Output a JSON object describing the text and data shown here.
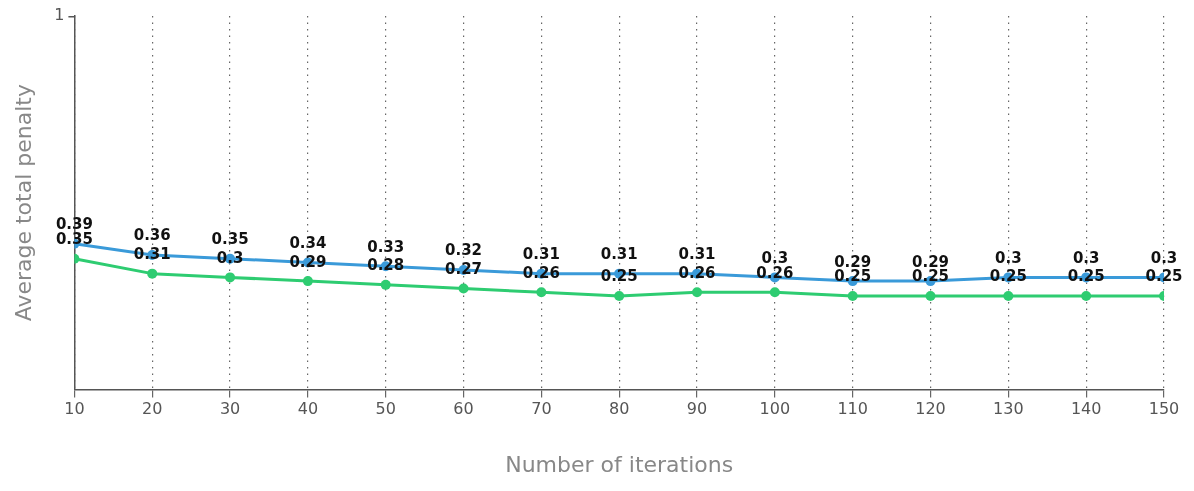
{
  "chart_data": {
    "type": "line",
    "xlabel": "Number of iterations",
    "ylabel": "Average total penalty",
    "x": [
      10,
      20,
      30,
      40,
      50,
      60,
      70,
      80,
      90,
      100,
      110,
      120,
      130,
      140,
      150
    ],
    "series": [
      {
        "color": "#3a9ad9",
        "values": [
          0.39,
          0.36,
          0.35,
          0.34,
          0.33,
          0.32,
          0.31,
          0.31,
          0.31,
          0.3,
          0.29,
          0.29,
          0.3,
          0.3,
          0.3
        ]
      },
      {
        "color": "#2ecc71",
        "values": [
          0.35,
          0.31,
          0.3,
          0.29,
          0.28,
          0.27,
          0.26,
          0.25,
          0.26,
          0.26,
          0.25,
          0.25,
          0.25,
          0.25,
          0.25
        ]
      }
    ],
    "xlim": [
      10,
      150
    ],
    "xticks": [
      10,
      20,
      30,
      40,
      50,
      60,
      70,
      80,
      90,
      100,
      110,
      120,
      130,
      140,
      150
    ],
    "ylim": [
      0,
      1
    ],
    "annotations": [
      "1"
    ],
    "grid": "x",
    "marker": "circle",
    "line_style": "solid",
    "data_labels": true,
    "legend": false
  }
}
